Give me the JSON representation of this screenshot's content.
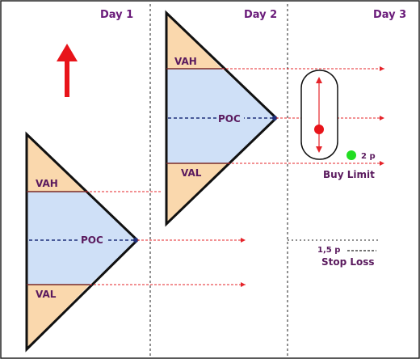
{
  "days": [
    "Day 1",
    "Day 2",
    "Day 3"
  ],
  "profile_day1": {
    "vah": "VAH",
    "poc": "POC",
    "val": "VAL"
  },
  "profile_day2": {
    "vah": "VAH",
    "poc": "POC",
    "val": "VAL"
  },
  "annotations": {
    "buy_limit": "Buy Limit",
    "buy_offset": "2 p",
    "stop_loss": "Stop Loss",
    "stop_offset": "1,5 p"
  },
  "colors": {
    "value_area": "#cfe0f7",
    "tails": "#fad8ad",
    "arrow_up": "#e8141a",
    "dashed_level": "#e5242a",
    "poc_line": "#1f2f7a",
    "buy_dot": "#22dd22",
    "entry_dot": "#e8141a",
    "label_text": "#5a1a5e"
  }
}
